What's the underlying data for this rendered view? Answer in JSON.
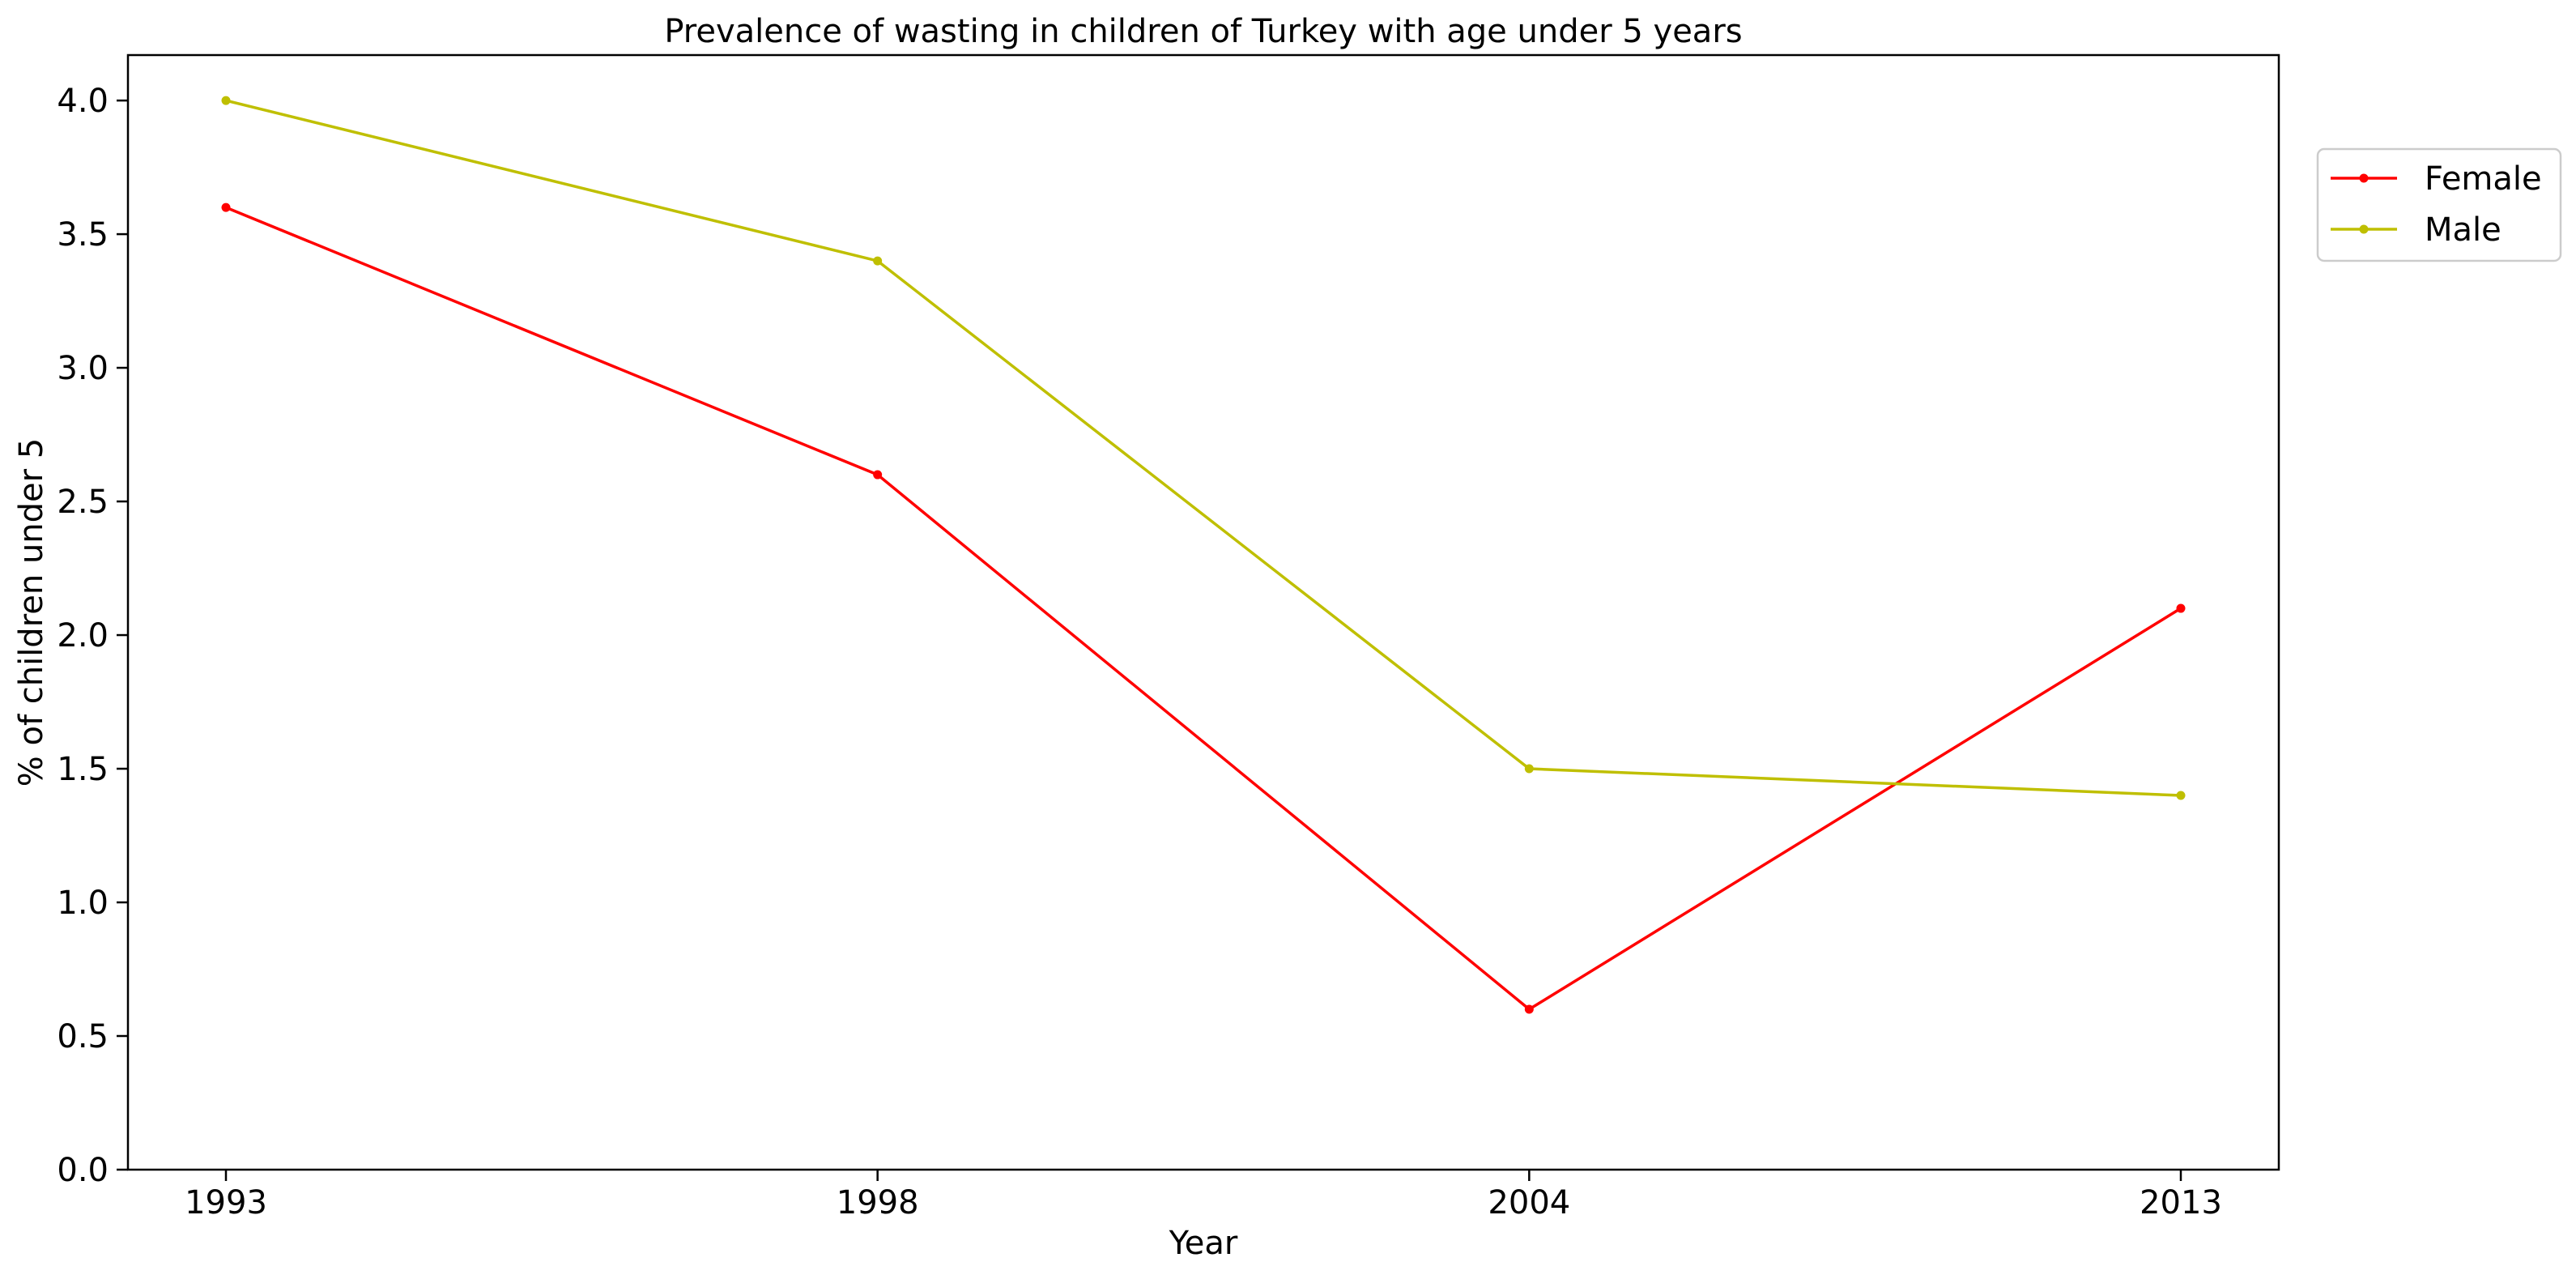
{
  "chart_data": {
    "type": "line",
    "title": "Prevalence of wasting in children of Turkey with age under 5 years",
    "xlabel": "Year",
    "ylabel": "% of children under 5",
    "categories": [
      "1993",
      "1998",
      "2004",
      "2013"
    ],
    "ylim": [
      0,
      4.17
    ],
    "yticks": [
      "0.0",
      "0.5",
      "1.0",
      "1.5",
      "2.0",
      "2.5",
      "3.0",
      "3.5",
      "4.0"
    ],
    "grid": false,
    "legend_position": "outside-top-right",
    "series": [
      {
        "name": "Female",
        "color": "#ff0000",
        "values": [
          3.6,
          2.6,
          0.6,
          2.1
        ]
      },
      {
        "name": "Male",
        "color": "#bfbf00",
        "values": [
          4.0,
          3.4,
          1.5,
          1.4
        ]
      }
    ]
  }
}
